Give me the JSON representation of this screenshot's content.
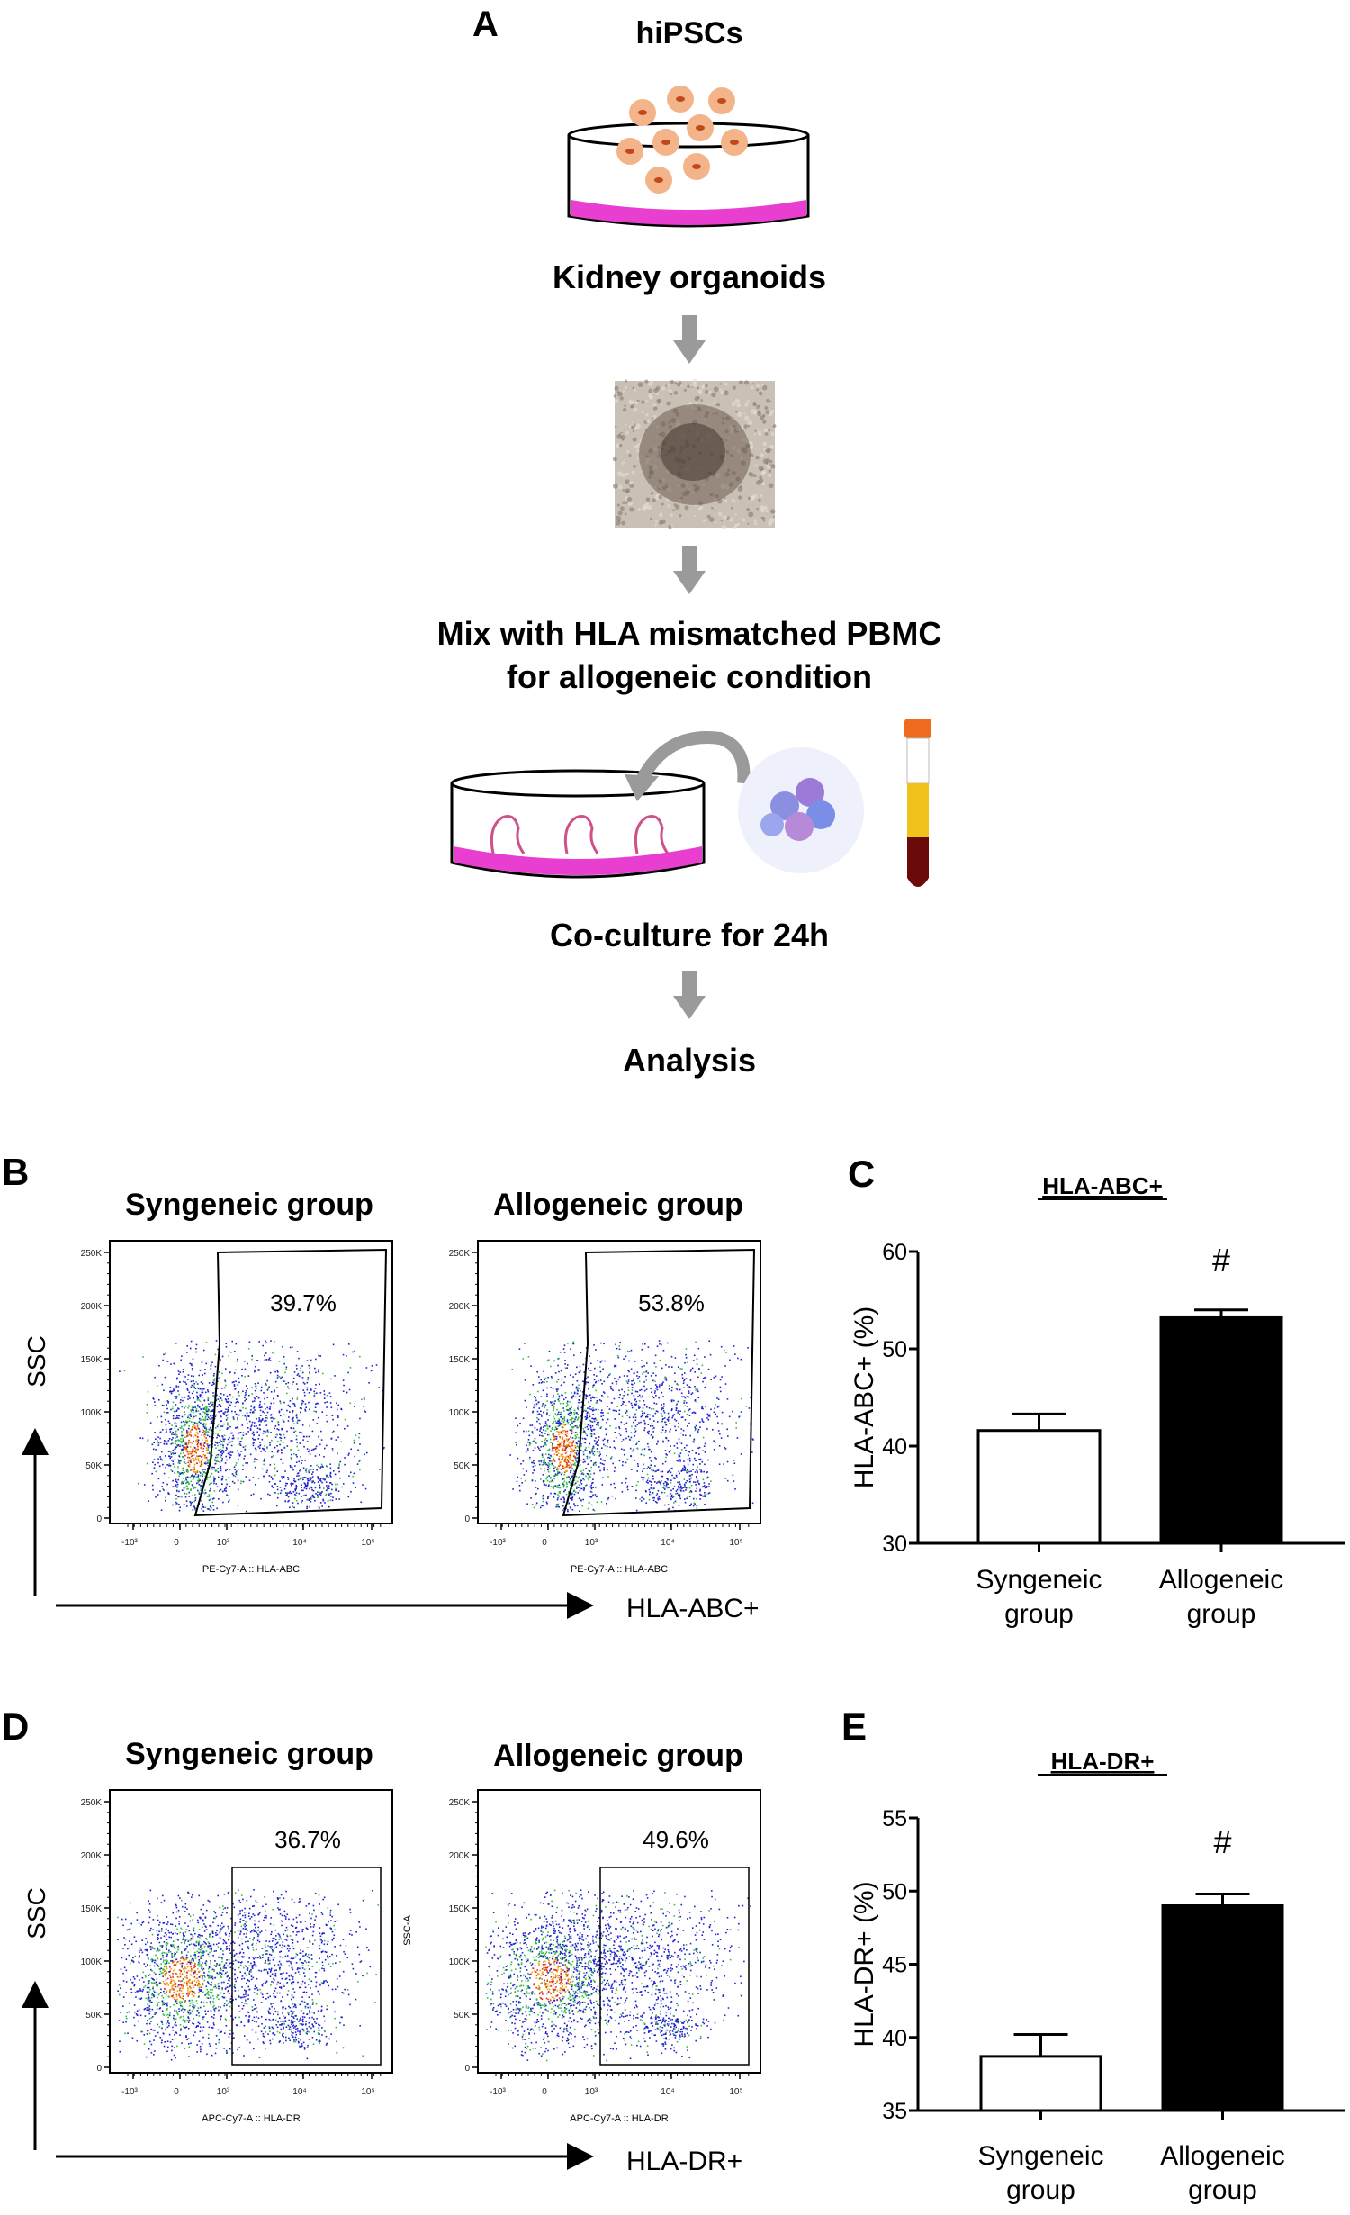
{
  "panel_a": {
    "label": "A",
    "step1": "hiPSCs",
    "step2": "Kidney organoids",
    "step3_line1": "Mix with HLA mismatched PBMC",
    "step3_line2": "for allogeneic condition",
    "step4": "Co-culture for 24h",
    "step5": "Analysis",
    "colors": {
      "medium": "#e83fd0",
      "cell": "#f4b48a",
      "nucleus": "#c0481c",
      "arrow": "#9a9a9a"
    }
  },
  "panel_b": {
    "label": "B",
    "plots": [
      {
        "title": "Syngeneic group",
        "gate_percent": "39.7%",
        "x_axis": "PE-Cy7-A :: HLA-ABC"
      },
      {
        "title": "Allogeneic group",
        "gate_percent": "53.8%",
        "x_axis": "PE-Cy7-A :: HLA-ABC"
      }
    ],
    "y_label": "SSC",
    "x_label": "HLA-ABC+",
    "y_ticks": [
      "0",
      "50K",
      "100K",
      "150K",
      "200K",
      "250K"
    ],
    "x_ticks": [
      "-10³",
      "0",
      "10³",
      "10⁴",
      "10⁵"
    ]
  },
  "panel_d": {
    "label": "D",
    "plots": [
      {
        "title": "Syngeneic group",
        "gate_percent": "36.7%",
        "x_axis": "APC-Cy7-A :: HLA-DR"
      },
      {
        "title": "Allogeneic group",
        "gate_percent": "49.6%",
        "x_axis": "APC-Cy7-A :: HLA-DR"
      }
    ],
    "y_label": "SSC",
    "x_label": "HLA-DR+",
    "side_label": "SSC-A",
    "y_ticks": [
      "0",
      "50K",
      "100K",
      "150K",
      "200K",
      "250K"
    ],
    "x_ticks": [
      "-10³",
      "0",
      "10³",
      "10⁴",
      "10⁵"
    ]
  },
  "chart_data": [
    {
      "panel": "C",
      "type": "bar",
      "title": "HLA-ABC+",
      "ylabel": "HLA-ABC+ (%)",
      "xlabel": "",
      "categories": [
        "Syngeneic group",
        "Allogeneic group"
      ],
      "category_lines": [
        [
          "Syngeneic",
          "group"
        ],
        [
          "Allogeneic",
          "group"
        ]
      ],
      "values": [
        41.6,
        53.2
      ],
      "error_upper": [
        43.3,
        54.0
      ],
      "bar_colors": [
        "#ffffff",
        "#000000"
      ],
      "annotations": [
        "",
        "#"
      ],
      "ylim": [
        30,
        60
      ],
      "yticks": [
        30,
        40,
        50,
        60
      ],
      "grid": false
    },
    {
      "panel": "E",
      "type": "bar",
      "title": "HLA-DR+",
      "ylabel": "HLA-DR+ (%)",
      "xlabel": "",
      "categories": [
        "Syngeneic group",
        "Allogeneic group"
      ],
      "category_lines": [
        [
          "Syngeneic",
          "group"
        ],
        [
          "Allogeneic",
          "group"
        ]
      ],
      "values": [
        38.7,
        49.0
      ],
      "error_upper": [
        40.2,
        49.8
      ],
      "bar_colors": [
        "#ffffff",
        "#000000"
      ],
      "annotations": [
        "",
        "#"
      ],
      "ylim": [
        35,
        55
      ],
      "yticks": [
        35,
        40,
        45,
        50,
        55
      ],
      "grid": false
    }
  ]
}
